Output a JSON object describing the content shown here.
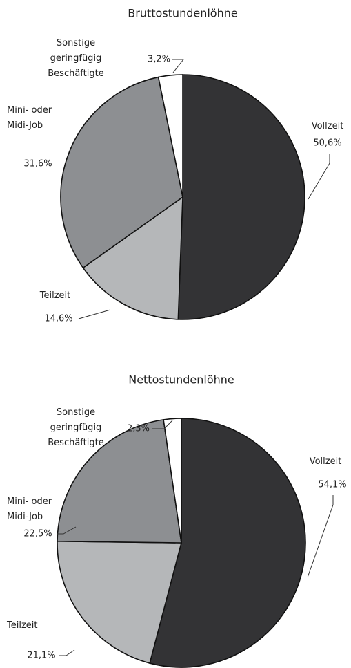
{
  "chart_data": [
    {
      "type": "pie",
      "title": "Bruttostundenlöhne",
      "categories": [
        "Vollzeit",
        "Teilzeit",
        "Mini- oder\nMidi-Job",
        "Sonstige\ngeringfügig\nBeschäftigte"
      ],
      "values": [
        50.6,
        14.6,
        31.6,
        3.2
      ],
      "value_labels": [
        "50,6%",
        "14,6%",
        "31,6%",
        "3,2%"
      ],
      "colors": [
        "#333335",
        "#b5b7b9",
        "#8d8f92",
        "#ffffff"
      ]
    },
    {
      "type": "pie",
      "title": "Nettostundenlöhne",
      "categories": [
        "Vollzeit",
        "Teilzeit",
        "Mini- oder\nMidi-Job",
        "Sonstige\ngeringfügig\nBeschäftigte"
      ],
      "values": [
        54.1,
        21.1,
        22.5,
        2.3
      ],
      "value_labels": [
        "54,1%",
        "21,1%",
        "22,5%",
        "2,3%"
      ],
      "colors": [
        "#333335",
        "#b5b7b9",
        "#8d8f92",
        "#ffffff"
      ]
    }
  ]
}
